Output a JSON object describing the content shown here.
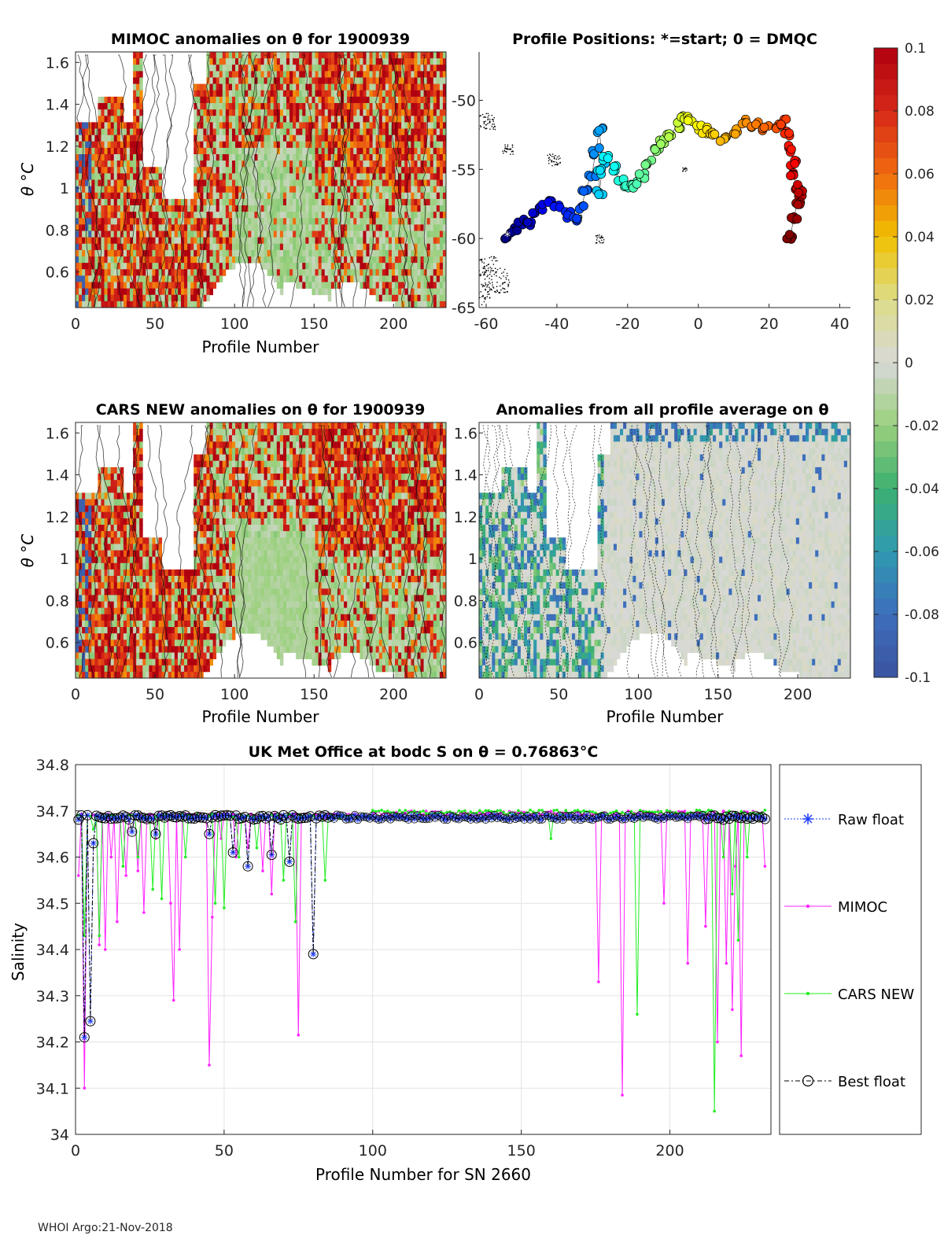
{
  "footer": "WHOI Argo:21-Nov-2018",
  "colors": {
    "raw": "#1f3fff",
    "mimoc": "#ff22ff",
    "cars": "#22ee22",
    "best": "#000000",
    "anom_low": "#3a5aa0",
    "anom_zero": "#d8d8d8",
    "anom_high": "#b30d0d"
  },
  "chart_data": [
    {
      "id": "mimoc",
      "type": "heatmap",
      "title": "MIMOC anomalies on θ  for 1900939",
      "xlabel": "Profile Number",
      "ylabel": "θ °C",
      "xlim": [
        0,
        233
      ],
      "ylim": [
        0.43,
        1.65
      ],
      "xticks": [
        "0",
        "50",
        "100",
        "150",
        "200"
      ],
      "yticks": [
        "0.6",
        "0.8",
        "1",
        "1.2",
        "1.4",
        "1.6"
      ]
    },
    {
      "id": "positions",
      "type": "scatter",
      "title": "Profile Positions: *=start; 0 = DMQC",
      "xlim": [
        -62,
        43
      ],
      "ylim": [
        -65,
        -46.5
      ],
      "xticks": [
        "-60",
        "-40",
        "-20",
        "0",
        "20",
        "40"
      ],
      "yticks": [
        "-50",
        "-55",
        "-60",
        "-65"
      ],
      "track_lon": [
        -54,
        -52,
        -50,
        -48,
        -46,
        -44,
        -42,
        -40,
        -37,
        -35,
        -33,
        -32,
        -30,
        -29,
        -28,
        -27,
        -28,
        -28,
        -26,
        -24,
        -22,
        -20,
        -18,
        -16,
        -14,
        -12,
        -10,
        -8,
        -6,
        -4,
        -2,
        0,
        2,
        4,
        7,
        10,
        13,
        16,
        19,
        22,
        24,
        25,
        26,
        27,
        27,
        28,
        29,
        28,
        27,
        26
      ],
      "track_lat": [
        -59.8,
        -59.4,
        -58.8,
        -58.9,
        -58.2,
        -57.7,
        -57.3,
        -57.6,
        -58.3,
        -58.6,
        -57.9,
        -56.5,
        -55.3,
        -53.7,
        -52.2,
        -54.5,
        -56.8,
        -55.2,
        -54.2,
        -54.9,
        -55.8,
        -56.2,
        -56.1,
        -55.4,
        -54.5,
        -53.7,
        -53.0,
        -52.6,
        -51.8,
        -51.1,
        -51.3,
        -51.9,
        -52.2,
        -52.4,
        -52.8,
        -52.3,
        -51.6,
        -51.8,
        -52.1,
        -51.8,
        -51.6,
        -52.5,
        -53.5,
        -54.5,
        -55.5,
        -56.3,
        -56.7,
        -57.4,
        -58.5,
        -59.9
      ],
      "cmap_values": [
        -0.1,
        -0.08,
        -0.06,
        -0.04,
        -0.02,
        0,
        0.02,
        0.04,
        0.06,
        0.08,
        0.1
      ],
      "cbar_ticks": [
        "0.1",
        "0.08",
        "0.06",
        "0.04",
        "0.02",
        "0",
        "-0.02",
        "-0.04",
        "-0.06",
        "-0.08",
        "-0.1"
      ]
    },
    {
      "id": "cars",
      "type": "heatmap",
      "title": "CARS NEW anomalies on θ for 1900939",
      "xlabel": "Profile Number",
      "ylabel": "θ °C",
      "xlim": [
        0,
        233
      ],
      "ylim": [
        0.43,
        1.65
      ],
      "xticks": [
        "0",
        "50",
        "100",
        "150",
        "200"
      ],
      "yticks": [
        "0.6",
        "0.8",
        "1",
        "1.2",
        "1.4",
        "1.6"
      ]
    },
    {
      "id": "allavg",
      "type": "heatmap",
      "title": "Anomalies from all profile average on θ",
      "xlabel": "Profile Number",
      "xlim": [
        0,
        233
      ],
      "ylim": [
        0.43,
        1.65
      ],
      "xticks": [
        "0",
        "50",
        "100",
        "150",
        "200"
      ],
      "yticks": [
        "0.6",
        "0.8",
        "1",
        "1.2",
        "1.4",
        "1.6"
      ]
    },
    {
      "id": "salinity",
      "type": "line",
      "title": "UK Met Office at bodc S on θ = 0.76863°C",
      "xlabel": "Profile Number for SN 2660",
      "ylabel": "Salinity",
      "xlim": [
        0,
        234
      ],
      "ylim": [
        34,
        34.8
      ],
      "xticks": [
        "0",
        "50",
        "100",
        "150",
        "200"
      ],
      "yticks": [
        "34",
        "34.1",
        "34.2",
        "34.3",
        "34.4",
        "34.5",
        "34.6",
        "34.7",
        "34.8"
      ],
      "legend": [
        "Raw float",
        "MIMOC",
        "CARS NEW",
        "Best float"
      ],
      "legend_position": "right",
      "float_dips": [
        [
          2,
          34.69
        ],
        [
          3,
          34.21
        ],
        [
          5,
          34.245
        ],
        [
          6,
          34.63
        ],
        [
          19,
          34.655
        ],
        [
          27,
          34.65
        ],
        [
          45,
          34.65
        ],
        [
          53,
          34.61
        ],
        [
          58,
          34.58
        ],
        [
          66,
          34.605
        ],
        [
          72,
          34.59
        ],
        [
          80,
          34.39
        ]
      ],
      "mimoc_dips": [
        [
          1,
          34.56
        ],
        [
          3,
          34.1
        ],
        [
          8,
          34.41
        ],
        [
          10,
          34.4
        ],
        [
          12,
          34.6
        ],
        [
          14,
          34.46
        ],
        [
          17,
          34.56
        ],
        [
          21,
          34.57
        ],
        [
          23,
          34.48
        ],
        [
          27,
          34.64
        ],
        [
          32,
          34.5
        ],
        [
          33,
          34.29
        ],
        [
          35,
          34.4
        ],
        [
          45,
          34.15
        ],
        [
          46,
          34.47
        ],
        [
          49,
          34.64
        ],
        [
          54,
          34.6
        ],
        [
          58,
          34.62
        ],
        [
          63,
          34.57
        ],
        [
          66,
          34.52
        ],
        [
          75,
          34.215
        ],
        [
          176,
          34.33
        ],
        [
          184,
          34.085
        ],
        [
          198,
          34.5
        ],
        [
          206,
          34.37
        ],
        [
          212,
          34.45
        ],
        [
          216,
          34.2
        ],
        [
          219,
          34.37
        ],
        [
          221,
          34.27
        ],
        [
          222,
          34.58
        ],
        [
          224,
          34.17
        ],
        [
          232,
          34.58
        ]
      ],
      "cars_dips": [
        [
          3,
          34.43
        ],
        [
          6,
          34.66
        ],
        [
          8,
          34.43
        ],
        [
          16,
          34.58
        ],
        [
          21,
          34.6
        ],
        [
          26,
          34.53
        ],
        [
          29,
          34.51
        ],
        [
          37,
          34.6
        ],
        [
          47,
          34.5
        ],
        [
          50,
          34.49
        ],
        [
          55,
          34.6
        ],
        [
          61,
          34.62
        ],
        [
          70,
          34.55
        ],
        [
          74,
          34.46
        ],
        [
          84,
          34.55
        ],
        [
          160,
          34.64
        ],
        [
          189,
          34.26
        ],
        [
          215,
          34.05
        ],
        [
          218,
          34.6
        ],
        [
          221,
          34.52
        ],
        [
          223,
          34.42
        ],
        [
          226,
          34.6
        ]
      ]
    }
  ]
}
